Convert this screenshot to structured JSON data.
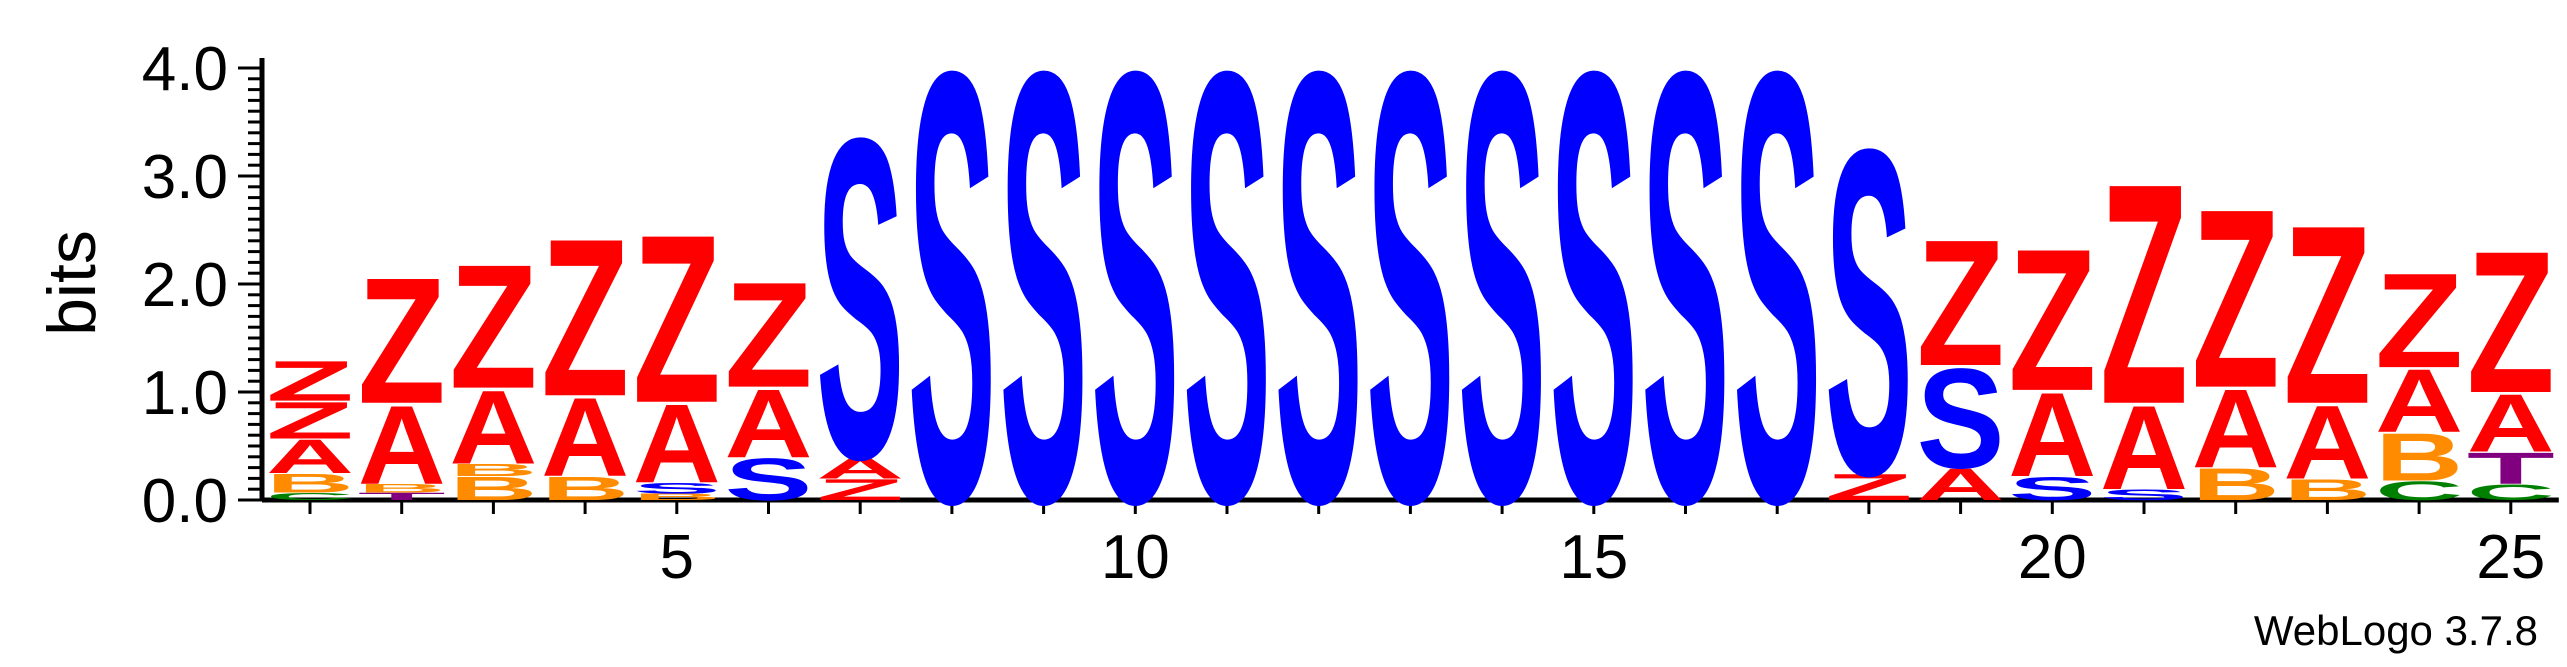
{
  "chart_data": {
    "type": "sequence-logo",
    "ylabel": "bits",
    "ylim": [
      0,
      4.0
    ],
    "y_ticks": [
      "0.0",
      "1.0",
      "2.0",
      "3.0",
      "4.0"
    ],
    "x_ticks": [
      5,
      10,
      15,
      20,
      25
    ],
    "credit": "WebLogo 3.7.8",
    "letter_colors": {
      "Z": "#ff0000",
      "A": "#ff0000",
      "S": "#0000ff",
      "B": "#ff8c00",
      "T": "#800080",
      "C": "#008000"
    },
    "positions": [
      {
        "pos": 1,
        "stack": [
          [
            "C",
            0.07
          ],
          [
            "B",
            0.18
          ],
          [
            "A",
            0.32
          ],
          [
            "Z",
            0.35
          ],
          [
            "Z",
            0.38
          ]
        ]
      },
      {
        "pos": 2,
        "stack": [
          [
            "T",
            0.07
          ],
          [
            "B",
            0.08
          ],
          [
            "A",
            0.75
          ],
          [
            "Z",
            1.2
          ]
        ]
      },
      {
        "pos": 3,
        "stack": [
          [
            "B",
            0.22
          ],
          [
            "B",
            0.12
          ],
          [
            "A",
            0.7
          ],
          [
            "Z",
            1.18
          ]
        ]
      },
      {
        "pos": 4,
        "stack": [
          [
            "B",
            0.22
          ],
          [
            "A",
            0.75
          ],
          [
            "Z",
            1.5
          ]
        ]
      },
      {
        "pos": 5,
        "stack": [
          [
            "B",
            0.06
          ],
          [
            "S",
            0.1
          ],
          [
            "A",
            0.75
          ],
          [
            "Z",
            1.6
          ]
        ]
      },
      {
        "pos": 6,
        "stack": [
          [
            "S",
            0.4
          ],
          [
            "A",
            0.65
          ],
          [
            "Z",
            1.0
          ]
        ]
      },
      {
        "pos": 7,
        "stack": [
          [
            "Z",
            0.2
          ],
          [
            "A",
            0.2
          ],
          [
            "S",
            3.05
          ]
        ]
      },
      {
        "pos": 8,
        "stack": [
          [
            "S",
            4.1
          ]
        ]
      },
      {
        "pos": 9,
        "stack": [
          [
            "S",
            4.1
          ]
        ]
      },
      {
        "pos": 10,
        "stack": [
          [
            "S",
            4.1
          ]
        ]
      },
      {
        "pos": 11,
        "stack": [
          [
            "S",
            4.1
          ]
        ]
      },
      {
        "pos": 12,
        "stack": [
          [
            "S",
            4.1
          ]
        ]
      },
      {
        "pos": 13,
        "stack": [
          [
            "S",
            4.1
          ]
        ]
      },
      {
        "pos": 14,
        "stack": [
          [
            "S",
            4.1
          ]
        ]
      },
      {
        "pos": 15,
        "stack": [
          [
            "S",
            4.1
          ]
        ]
      },
      {
        "pos": 16,
        "stack": [
          [
            "S",
            4.1
          ]
        ]
      },
      {
        "pos": 17,
        "stack": [
          [
            "S",
            4.1
          ]
        ]
      },
      {
        "pos": 18,
        "stack": [
          [
            "Z",
            0.25
          ],
          [
            "S",
            3.1
          ]
        ]
      },
      {
        "pos": 19,
        "stack": [
          [
            "A",
            0.3
          ],
          [
            "S",
            0.95
          ],
          [
            "Z",
            1.2
          ]
        ]
      },
      {
        "pos": 20,
        "stack": [
          [
            "S",
            0.22
          ],
          [
            "A",
            0.8
          ],
          [
            "Z",
            1.35
          ]
        ]
      },
      {
        "pos": 21,
        "stack": [
          [
            "S",
            0.1
          ],
          [
            "A",
            0.8
          ],
          [
            "Z",
            2.1
          ]
        ]
      },
      {
        "pos": 22,
        "stack": [
          [
            "B",
            0.3
          ],
          [
            "A",
            0.75
          ],
          [
            "Z",
            1.7
          ]
        ]
      },
      {
        "pos": 23,
        "stack": [
          [
            "B",
            0.2
          ],
          [
            "A",
            0.7
          ],
          [
            "Z",
            1.7
          ]
        ]
      },
      {
        "pos": 24,
        "stack": [
          [
            "C",
            0.18
          ],
          [
            "B",
            0.45
          ],
          [
            "A",
            0.6
          ],
          [
            "Z",
            0.9
          ]
        ]
      },
      {
        "pos": 25,
        "stack": [
          [
            "C",
            0.15
          ],
          [
            "T",
            0.3
          ],
          [
            "A",
            0.55
          ],
          [
            "Z",
            1.35
          ]
        ]
      }
    ]
  }
}
